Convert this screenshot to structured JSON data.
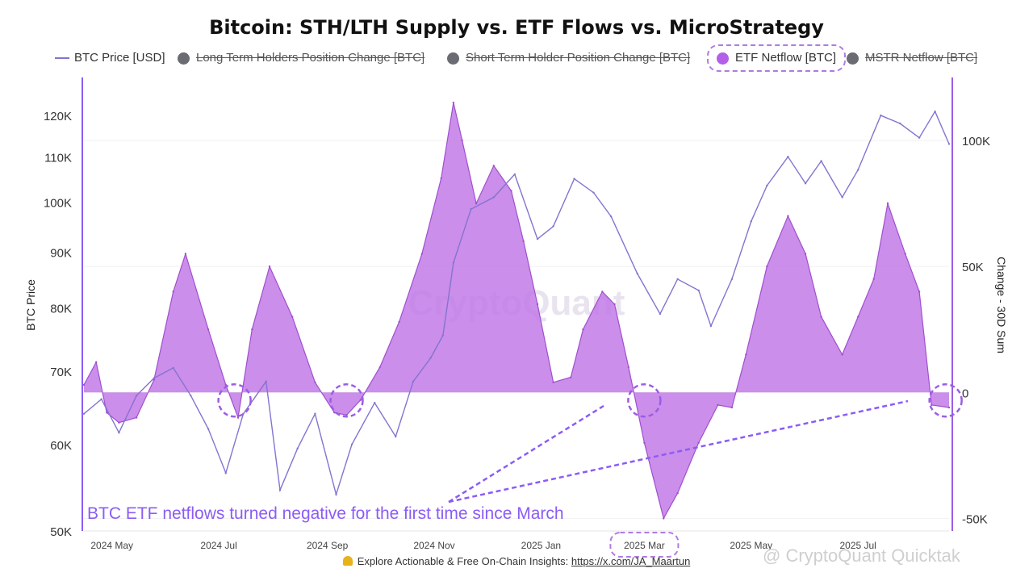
{
  "title": "Bitcoin: STH/LTH Supply vs. ETF Flows vs. MicroStrategy",
  "legend": {
    "btc_price": "BTC Price [USD]",
    "lth": "Long Term Holders Position Change [BTC]",
    "sth": "Short Term Holder Position Change [BTC]",
    "etf": "ETF Netflow [BTC]",
    "mstr": "MSTR Netflow [BTC]"
  },
  "annotation": "BTC ETF netflows turned negative for the first time since March",
  "watermark": "CryptoQuant",
  "watermark2": "@ CryptoQuant Quicktak",
  "footer": {
    "text": "Explore Actionable & Free On-Chain Insights:",
    "link": "https://x.com/JA_Maartun"
  },
  "colors": {
    "price_line": "#8474d0",
    "etf_fill": "#c27ae6",
    "etf_stroke": "#a04fd0",
    "accent": "#9b5de5",
    "legend_off_dot": "#6b6b73"
  },
  "chart_data": {
    "type": "line",
    "title": "Bitcoin: STH/LTH Supply vs. ETF Flows vs. MicroStrategy",
    "ylabel": "BTC Price",
    "y2label": "Change - 30D Sum",
    "y_scale": "log",
    "ylim": [
      50000,
      130000
    ],
    "y2lim": [
      -55000,
      125000
    ],
    "x_ticks": [
      "2024 May",
      "2024 Jul",
      "2024 Sep",
      "2024 Nov",
      "2025 Jan",
      "2025 Mar",
      "2025 May",
      "2025 Jul"
    ],
    "y_ticks": [
      "120K",
      "110K",
      "100K",
      "90K",
      "80K",
      "70K",
      "60K",
      "50K"
    ],
    "y_tick_values": [
      120000,
      110000,
      100000,
      90000,
      80000,
      70000,
      60000,
      50000
    ],
    "y2_ticks": [
      "100K",
      "50K",
      "0",
      "-50K"
    ],
    "y2_tick_values": [
      100000,
      50000,
      0,
      -50000
    ],
    "grid": true,
    "legend_position": "top",
    "x_range": [
      "2024-04-15",
      "2025-08-22"
    ],
    "series": [
      {
        "name": "BTC Price [USD]",
        "axis": "left",
        "x": [
          "2024-04-15",
          "2024-04-25",
          "2024-05-05",
          "2024-05-15",
          "2024-05-25",
          "2024-06-05",
          "2024-06-15",
          "2024-06-25",
          "2024-07-05",
          "2024-07-15",
          "2024-07-28",
          "2024-08-05",
          "2024-08-15",
          "2024-08-25",
          "2024-09-06",
          "2024-09-15",
          "2024-09-28",
          "2024-10-10",
          "2024-10-20",
          "2024-10-30",
          "2024-11-06",
          "2024-11-12",
          "2024-11-22",
          "2024-12-05",
          "2024-12-17",
          "2024-12-30",
          "2025-01-08",
          "2025-01-20",
          "2025-01-31",
          "2025-02-10",
          "2025-02-25",
          "2025-03-10",
          "2025-03-20",
          "2025-04-01",
          "2025-04-08",
          "2025-04-20",
          "2025-05-01",
          "2025-05-10",
          "2025-05-22",
          "2025-06-01",
          "2025-06-10",
          "2025-06-22",
          "2025-07-01",
          "2025-07-14",
          "2025-07-25",
          "2025-08-05",
          "2025-08-14",
          "2025-08-22"
        ],
        "values": [
          64000,
          66000,
          61500,
          66500,
          69000,
          70500,
          66500,
          62000,
          56500,
          64000,
          68500,
          54500,
          59500,
          64000,
          54000,
          60000,
          65500,
          61000,
          68500,
          72000,
          75500,
          88000,
          98500,
          101000,
          106000,
          92500,
          95000,
          105000,
          102000,
          97000,
          86000,
          79000,
          85000,
          83000,
          77000,
          85000,
          96000,
          103500,
          110000,
          104000,
          109000,
          101000,
          107000,
          120000,
          118000,
          114500,
          121000,
          113000
        ]
      },
      {
        "name": "ETF Netflow [BTC]",
        "axis": "right",
        "x": [
          "2024-04-15",
          "2024-04-22",
          "2024-04-28",
          "2024-05-05",
          "2024-05-15",
          "2024-05-25",
          "2024-06-05",
          "2024-06-12",
          "2024-06-25",
          "2024-07-05",
          "2024-07-12",
          "2024-07-20",
          "2024-07-30",
          "2024-08-12",
          "2024-08-25",
          "2024-09-05",
          "2024-09-12",
          "2024-09-20",
          "2024-10-01",
          "2024-10-12",
          "2024-10-25",
          "2024-11-05",
          "2024-11-12",
          "2024-11-17",
          "2024-11-25",
          "2024-12-05",
          "2024-12-15",
          "2024-12-22",
          "2024-12-30",
          "2025-01-08",
          "2025-01-18",
          "2025-01-25",
          "2025-02-05",
          "2025-02-12",
          "2025-02-20",
          "2025-03-01",
          "2025-03-12",
          "2025-03-20",
          "2025-04-01",
          "2025-04-12",
          "2025-04-20",
          "2025-04-28",
          "2025-05-10",
          "2025-05-22",
          "2025-06-01",
          "2025-06-10",
          "2025-06-22",
          "2025-07-01",
          "2025-07-10",
          "2025-07-18",
          "2025-07-28",
          "2025-08-05",
          "2025-08-12",
          "2025-08-22"
        ],
        "values": [
          3000,
          12000,
          -8000,
          -12000,
          -10000,
          5000,
          40000,
          55000,
          25000,
          3000,
          -10000,
          25000,
          50000,
          30000,
          4000,
          -8000,
          -9000,
          -3000,
          10000,
          28000,
          55000,
          85000,
          115000,
          100000,
          75000,
          90000,
          80000,
          60000,
          35000,
          4000,
          6000,
          25000,
          40000,
          35000,
          10000,
          -20000,
          -50000,
          -40000,
          -20000,
          -5000,
          -6000,
          15000,
          50000,
          70000,
          55000,
          30000,
          15000,
          30000,
          45000,
          75000,
          55000,
          40000,
          -5000,
          -6000
        ]
      }
    ]
  }
}
